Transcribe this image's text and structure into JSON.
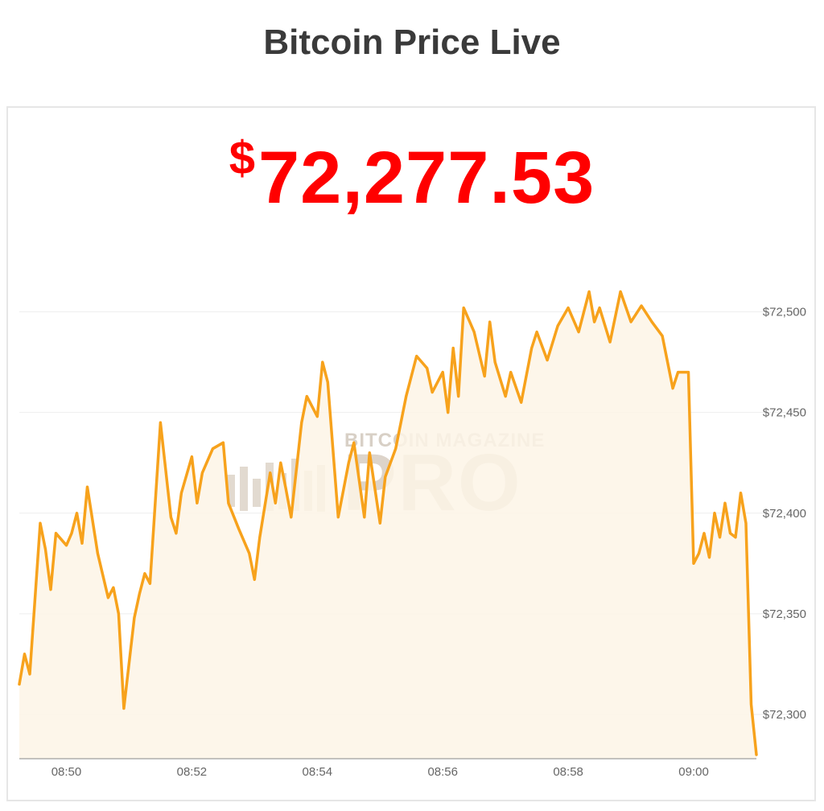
{
  "header": {
    "title": "Bitcoin Price Live"
  },
  "price": {
    "currency_symbol": "$",
    "value": "72,277.53",
    "color": "#ff0000"
  },
  "watermark": {
    "line1": "BITCOIN MAGAZINE",
    "line2": "PRO"
  },
  "chart_data": {
    "type": "area",
    "title": "",
    "xlabel": "",
    "ylabel": "",
    "line_color": "#f7a21c",
    "fill_color": "#fdf4e6",
    "grid": true,
    "y_ticks": [
      {
        "value": 72500,
        "label": "$72,500"
      },
      {
        "value": 72450,
        "label": "$72,450"
      },
      {
        "value": 72400,
        "label": "$72,400"
      },
      {
        "value": 72350,
        "label": "$72,350"
      },
      {
        "value": 72300,
        "label": "$72,300"
      }
    ],
    "x_ticks": [
      {
        "value": "08:50",
        "label": "08:50"
      },
      {
        "value": "08:52",
        "label": "08:52"
      },
      {
        "value": "08:54",
        "label": "08:54"
      },
      {
        "value": "08:56",
        "label": "08:56"
      },
      {
        "value": "08:58",
        "label": "08:58"
      },
      {
        "value": "09:00",
        "label": "09:00"
      }
    ],
    "xlim": [
      "08:49:15",
      "09:01:00"
    ],
    "ylim": [
      72278,
      72535
    ],
    "series": [
      {
        "x": [
          "08:49:15",
          "08:49:20",
          "08:49:25",
          "08:49:35",
          "08:49:40",
          "08:49:45",
          "08:49:50",
          "08:50:00",
          "08:50:05",
          "08:50:10",
          "08:50:15",
          "08:50:20",
          "08:50:30",
          "08:50:40",
          "08:50:45",
          "08:50:50",
          "08:50:55",
          "08:51:05",
          "08:51:10",
          "08:51:15",
          "08:51:20",
          "08:51:30",
          "08:51:40",
          "08:51:45",
          "08:51:50",
          "08:52:00",
          "08:52:05",
          "08:52:10",
          "08:52:20",
          "08:52:30",
          "08:52:35",
          "08:52:45",
          "08:52:55",
          "08:53:00",
          "08:53:05",
          "08:53:15",
          "08:53:20",
          "08:53:25",
          "08:53:30",
          "08:53:35",
          "08:53:45",
          "08:53:50",
          "08:54:00",
          "08:54:05",
          "08:54:10",
          "08:54:20",
          "08:54:30",
          "08:54:35",
          "08:54:45",
          "08:54:50",
          "08:55:00",
          "08:55:05",
          "08:55:15",
          "08:55:25",
          "08:55:35",
          "08:55:45",
          "08:55:50",
          "08:56:00",
          "08:56:05",
          "08:56:10",
          "08:56:15",
          "08:56:20",
          "08:56:30",
          "08:56:40",
          "08:56:45",
          "08:56:50",
          "08:57:00",
          "08:57:05",
          "08:57:15",
          "08:57:25",
          "08:57:30",
          "08:57:40",
          "08:57:50",
          "08:58:00",
          "08:58:10",
          "08:58:20",
          "08:58:25",
          "08:58:30",
          "08:58:40",
          "08:58:50",
          "08:59:00",
          "08:59:10",
          "08:59:20",
          "08:59:30",
          "08:59:40",
          "08:59:45",
          "08:59:55",
          "09:00:00",
          "09:00:05",
          "09:00:10",
          "09:00:15",
          "09:00:20",
          "09:00:25",
          "09:00:30",
          "09:00:35",
          "09:00:40",
          "09:00:45",
          "09:00:50",
          "09:00:55",
          "09:01:00"
        ],
        "y": [
          72315,
          72330,
          72320,
          72395,
          72382,
          72362,
          72390,
          72384,
          72390,
          72400,
          72385,
          72413,
          72380,
          72358,
          72363,
          72350,
          72303,
          72348,
          72360,
          72370,
          72365,
          72445,
          72398,
          72390,
          72410,
          72428,
          72405,
          72420,
          72432,
          72435,
          72405,
          72392,
          72380,
          72367,
          72388,
          72420,
          72405,
          72425,
          72412,
          72398,
          72445,
          72458,
          72448,
          72475,
          72465,
          72398,
          72425,
          72435,
          72398,
          72430,
          72395,
          72418,
          72432,
          72458,
          72478,
          72472,
          72460,
          72470,
          72450,
          72482,
          72458,
          72502,
          72490,
          72468,
          72495,
          72475,
          72458,
          72470,
          72455,
          72482,
          72490,
          72476,
          72493,
          72502,
          72490,
          72510,
          72495,
          72502,
          72485,
          72510,
          72495,
          72503,
          72495,
          72488,
          72462,
          72470,
          72470,
          72375,
          72380,
          72390,
          72378,
          72400,
          72388,
          72405,
          72390,
          72388,
          72410,
          72395,
          72305,
          72280
        ]
      }
    ]
  }
}
